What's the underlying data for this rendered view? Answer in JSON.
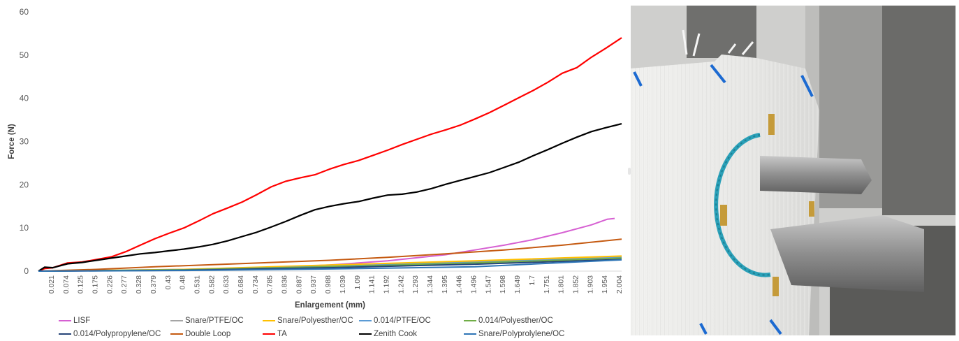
{
  "chart_data": {
    "type": "line",
    "xlabel": "Enlargement (mm)",
    "ylabel": "Force (N)",
    "ylim": [
      0,
      60
    ],
    "yticks": [
      0,
      10,
      20,
      30,
      40,
      50,
      60
    ],
    "xlim": [
      0,
      2.004
    ],
    "xticks": [
      "0.021",
      "0.074",
      "0.125",
      "0.175",
      "0.226",
      "0.277",
      "0.328",
      "0.379",
      "0.43",
      "0.48",
      "0.531",
      "0.582",
      "0.633",
      "0.684",
      "0.734",
      "0.785",
      "0.836",
      "0.887",
      "0.937",
      "0.988",
      "1.039",
      "1.09",
      "1.141",
      "1.192",
      "1.242",
      "1.293",
      "1.344",
      "1.395",
      "1.446",
      "1.496",
      "1.547",
      "1.598",
      "1.649",
      "1.7",
      "1.751",
      "1.801",
      "1.852",
      "1.903",
      "1.954",
      "2.004"
    ],
    "grid": false,
    "legend_position": "bottom",
    "series": [
      {
        "name": "LISF",
        "color": "#d660d2",
        "x": [
          0,
          0.2,
          0.4,
          0.6,
          0.8,
          1.0,
          1.2,
          1.4,
          1.5,
          1.6,
          1.7,
          1.8,
          1.9,
          1.954,
          1.98
        ],
        "y": [
          0,
          0.1,
          0.3,
          0.5,
          0.8,
          1.4,
          2.4,
          3.8,
          4.9,
          6.0,
          7.3,
          8.9,
          10.7,
          12.0,
          12.2
        ]
      },
      {
        "name": "Snare/PTFE/OC",
        "color": "#a5a5a5",
        "x": [
          0,
          0.5,
          1.0,
          1.5,
          2.004
        ],
        "y": [
          0,
          0.3,
          1.2,
          2.2,
          3.3
        ]
      },
      {
        "name": "Snare/Polyesther/OC",
        "color": "#ffc000",
        "x": [
          0,
          0.5,
          1.0,
          1.5,
          2.004
        ],
        "y": [
          0,
          0.4,
          1.4,
          2.4,
          3.5
        ]
      },
      {
        "name": "0.014/PTFE/OC",
        "color": "#5b9bd5",
        "x": [
          0,
          0.5,
          1.0,
          1.5,
          2.004
        ],
        "y": [
          0,
          0.3,
          1.1,
          2.0,
          3.1
        ]
      },
      {
        "name": "0.014/Polyesther/OC",
        "color": "#70ad47",
        "x": [
          0,
          0.5,
          1.0,
          1.5,
          2.004
        ],
        "y": [
          0,
          0.3,
          1.0,
          1.9,
          3.0
        ]
      },
      {
        "name": "0.014/Polypropylene/OC",
        "color": "#264478",
        "x": [
          0,
          0.5,
          1.0,
          1.5,
          2.004
        ],
        "y": [
          0,
          0.2,
          0.8,
          1.6,
          2.7
        ]
      },
      {
        "name": "Double Loop",
        "color": "#c55a11",
        "x": [
          0,
          0.2,
          0.4,
          0.6,
          0.8,
          1.0,
          1.2,
          1.4,
          1.6,
          1.8,
          2.004
        ],
        "y": [
          0,
          0.4,
          1.0,
          1.5,
          2.0,
          2.5,
          3.2,
          4.0,
          4.9,
          6.0,
          7.4
        ]
      },
      {
        "name": "TA",
        "color": "#ff0000",
        "x": [
          0,
          0.021,
          0.05,
          0.1,
          0.15,
          0.2,
          0.25,
          0.3,
          0.35,
          0.4,
          0.45,
          0.5,
          0.55,
          0.6,
          0.65,
          0.7,
          0.75,
          0.8,
          0.85,
          0.9,
          0.95,
          1.0,
          1.05,
          1.1,
          1.15,
          1.2,
          1.25,
          1.3,
          1.35,
          1.4,
          1.45,
          1.5,
          1.55,
          1.6,
          1.65,
          1.7,
          1.75,
          1.8,
          1.85,
          1.9,
          1.95,
          2.004
        ],
        "y": [
          0,
          0.6,
          0.8,
          1.9,
          2.1,
          2.7,
          3.3,
          4.5,
          6.0,
          7.5,
          8.8,
          10.0,
          11.6,
          13.3,
          14.6,
          16.0,
          17.7,
          19.5,
          20.8,
          21.6,
          22.3,
          23.6,
          24.7,
          25.6,
          26.8,
          28.0,
          29.3,
          30.5,
          31.7,
          32.7,
          33.8,
          35.2,
          36.7,
          38.4,
          40.1,
          41.8,
          43.7,
          45.8,
          47.1,
          49.5,
          51.6,
          54.0
        ]
      },
      {
        "name": "Zenith Cook",
        "color": "#000000",
        "x": [
          0,
          0.021,
          0.05,
          0.1,
          0.15,
          0.2,
          0.25,
          0.3,
          0.35,
          0.4,
          0.45,
          0.5,
          0.55,
          0.6,
          0.65,
          0.7,
          0.75,
          0.8,
          0.85,
          0.9,
          0.95,
          1.0,
          1.05,
          1.1,
          1.15,
          1.2,
          1.25,
          1.3,
          1.35,
          1.4,
          1.45,
          1.5,
          1.55,
          1.6,
          1.65,
          1.7,
          1.75,
          1.8,
          1.85,
          1.9,
          1.95,
          2.004
        ],
        "y": [
          0,
          0.9,
          0.8,
          1.7,
          2.0,
          2.5,
          3.0,
          3.5,
          4.0,
          4.3,
          4.7,
          5.1,
          5.6,
          6.2,
          7.0,
          8.0,
          9.0,
          10.2,
          11.5,
          12.9,
          14.2,
          15.0,
          15.6,
          16.1,
          16.9,
          17.6,
          17.8,
          18.3,
          19.1,
          20.1,
          21.0,
          21.9,
          22.8,
          24.0,
          25.2,
          26.7,
          28.1,
          29.6,
          31.0,
          32.3,
          33.2,
          34.1
        ]
      },
      {
        "name": "Snare/Polyprolylene/OC",
        "color": "#2e75b6",
        "x": [
          0,
          0.5,
          1.0,
          1.5,
          2.004
        ],
        "y": [
          0,
          0.15,
          0.5,
          1.0,
          2.6
        ]
      }
    ]
  },
  "photo": {
    "alt_icon": "suture-tensile-test-photo"
  }
}
